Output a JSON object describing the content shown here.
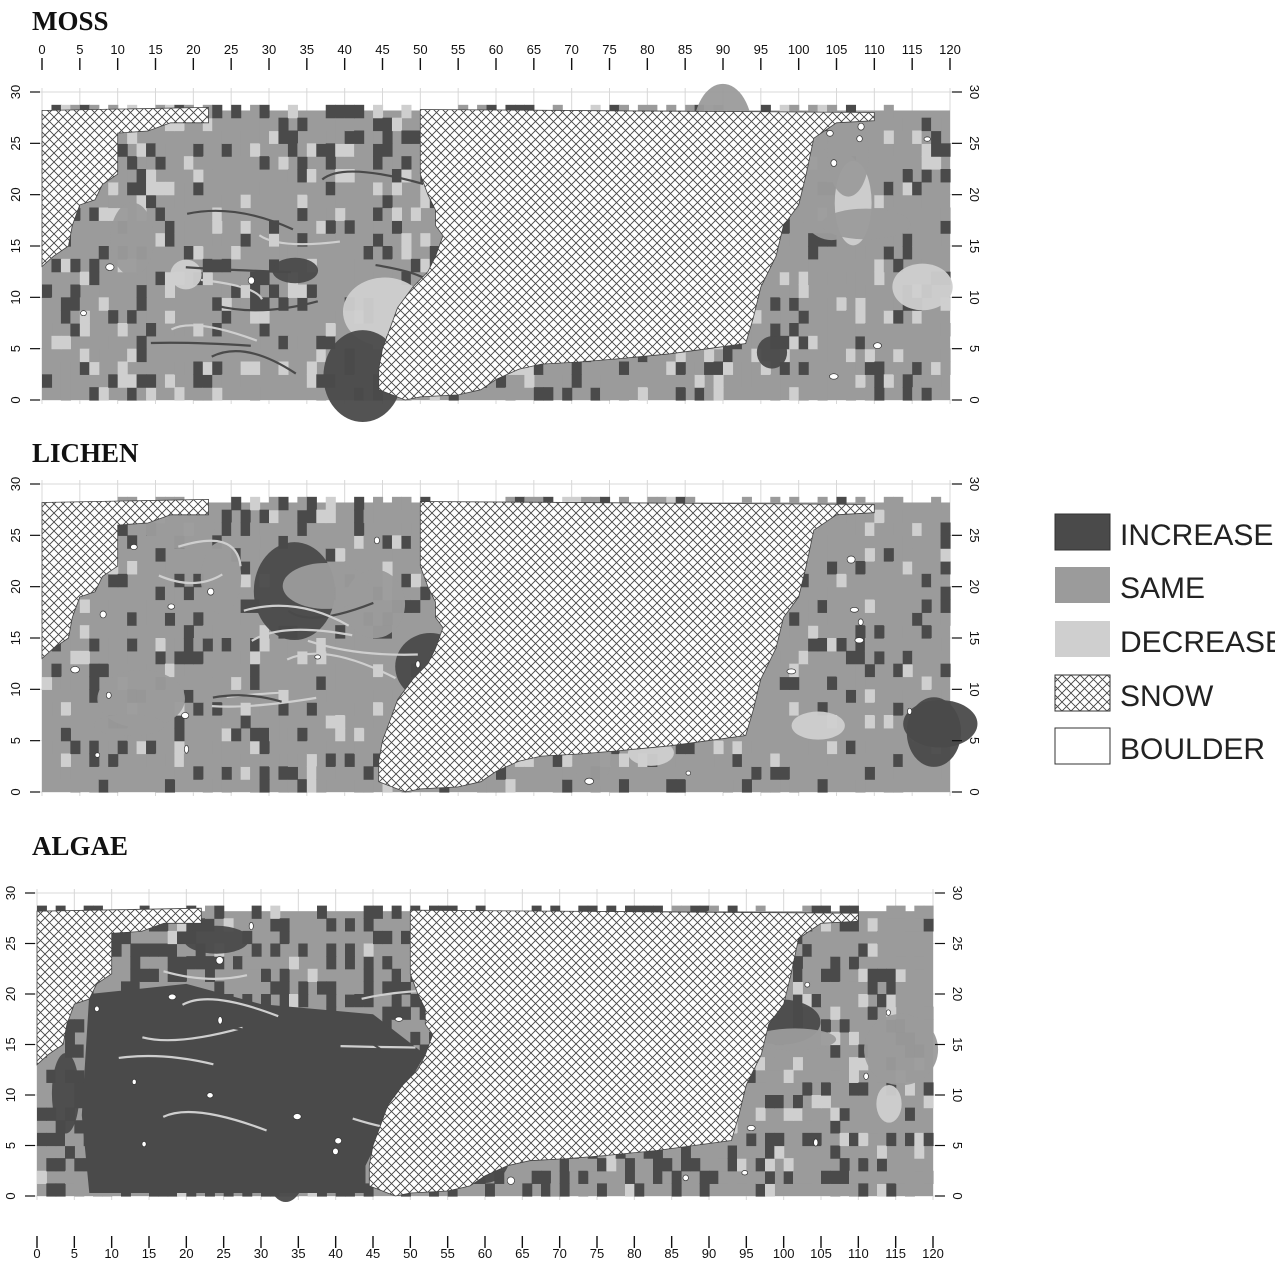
{
  "colors": {
    "increase": "#4a4a4a",
    "same": "#9b9b9b",
    "decrease": "#cfcfcf",
    "boulder": "#ffffff",
    "snow_line": "#444444",
    "grid": "#d8d8d8"
  },
  "axes": {
    "x_ticks": [
      0,
      5,
      10,
      15,
      20,
      25,
      30,
      35,
      40,
      45,
      50,
      55,
      60,
      65,
      70,
      75,
      80,
      85,
      90,
      95,
      100,
      105,
      110,
      115,
      120
    ],
    "y_ticks": [
      0,
      5,
      10,
      15,
      20,
      25,
      30
    ],
    "xlim": [
      0,
      120
    ],
    "ylim": [
      0,
      30
    ]
  },
  "panels": [
    {
      "title": "MOSS",
      "scheme": "moss"
    },
    {
      "title": "LICHEN",
      "scheme": "lichen"
    },
    {
      "title": "ALGAE",
      "scheme": "algae"
    }
  ],
  "legend": [
    {
      "key": "increase",
      "label": "INCREASE",
      "pattern": "solid"
    },
    {
      "key": "same",
      "label": "SAME",
      "pattern": "solid"
    },
    {
      "key": "decrease",
      "label": "DECREASE",
      "pattern": "solid"
    },
    {
      "key": "snow",
      "label": "SNOW",
      "pattern": "crosshatch"
    },
    {
      "key": "boulder",
      "label": "BOULDER",
      "pattern": "solid"
    }
  ]
}
